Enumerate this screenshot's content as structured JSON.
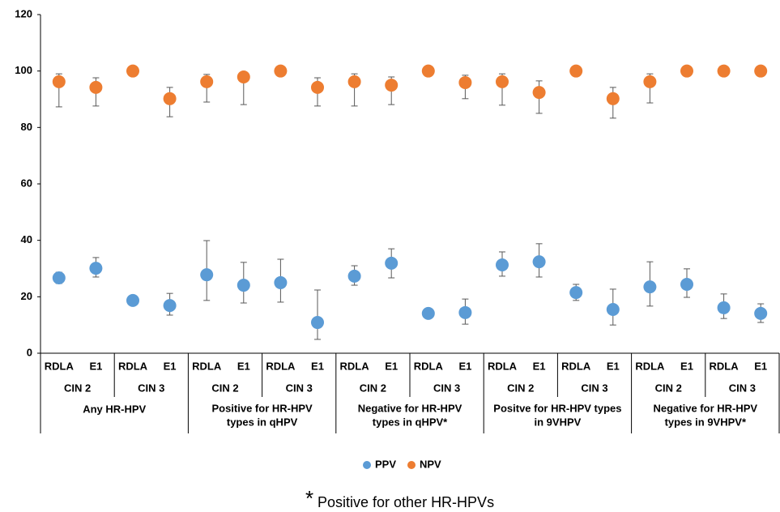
{
  "chart_data": {
    "type": "errorbar-scatter",
    "categories": [
      "RDLA",
      "E1",
      "RDLA",
      "E1",
      "RDLA",
      "E1",
      "RDLA",
      "E1",
      "RDLA",
      "E1",
      "RDLA",
      "E1",
      "RDLA",
      "E1",
      "RDLA",
      "E1",
      "RDLA",
      "E1",
      "RDLA",
      "E1"
    ],
    "subgroups": [
      "CIN 2",
      "CIN 3",
      "CIN 2",
      "CIN 3",
      "CIN 2",
      "CIN 3",
      "CIN 2",
      "CIN 3",
      "CIN 2",
      "CIN 3"
    ],
    "groups": [
      [
        "Any HR-HPV"
      ],
      [
        "Positive for HR-HPV",
        "types in qHPV"
      ],
      [
        "Negative for HR-HPV",
        "types in qHPV*"
      ],
      [
        "Positve for HR-HPV types",
        "in 9VHPV"
      ],
      [
        "Negative for HR-HPV",
        "types in 9VHPV*"
      ]
    ],
    "series": [
      {
        "name": "PPV",
        "color": "#5b9bd5",
        "values": [
          26.7,
          30.1,
          18.7,
          16.9,
          27.8,
          24.1,
          25,
          10.9,
          27.3,
          31.9,
          14.1,
          14.4,
          31.3,
          32.4,
          21.5,
          15.5,
          23.5,
          24.4,
          16.1,
          14.1
        ],
        "lower": [
          24.7,
          27,
          null,
          13.5,
          18.7,
          17.8,
          18.1,
          4.9,
          24.1,
          26.7,
          null,
          10.3,
          27.3,
          27,
          18.7,
          10,
          16.7,
          19.8,
          12.3,
          10.9
        ],
        "upper": [
          28.7,
          33.9,
          null,
          21.2,
          39.9,
          32.2,
          33.3,
          22.4,
          31,
          37,
          null,
          19.2,
          35.9,
          38.8,
          24.4,
          22.7,
          32.4,
          29.9,
          21,
          17.5
        ]
      },
      {
        "name": "NPV",
        "color": "#ed7d31",
        "values": [
          96.2,
          94.2,
          100,
          90.2,
          96.2,
          97.9,
          100,
          94.2,
          96.2,
          95,
          100,
          95.9,
          96.2,
          92.4,
          100,
          90.2,
          96.2,
          100,
          100,
          100
        ],
        "lower": [
          87.3,
          87.6,
          null,
          83.8,
          89,
          88.1,
          null,
          87.6,
          87.6,
          88.1,
          null,
          90.2,
          87.9,
          85,
          null,
          83.3,
          88.7,
          null,
          null,
          null
        ],
        "upper": [
          99,
          97.6,
          null,
          94.2,
          98.8,
          99.3,
          null,
          97.6,
          99,
          97.9,
          null,
          98.5,
          99,
          96.5,
          null,
          94.2,
          99,
          null,
          null,
          null
        ]
      }
    ],
    "ylim": [
      0,
      120
    ],
    "yticks": [
      0,
      20,
      40,
      60,
      80,
      100,
      120
    ],
    "grid": false,
    "legend": "bottom",
    "footnote_symbol": "*",
    "footnote": "Positive for other HR-HPVs"
  }
}
